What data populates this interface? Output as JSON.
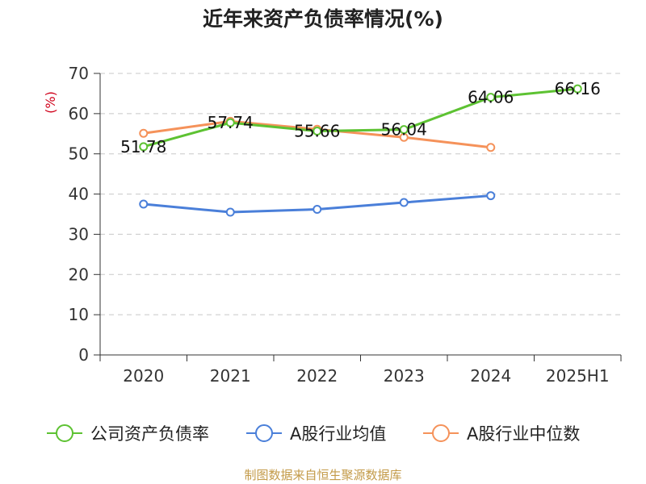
{
  "chart_data": {
    "type": "line",
    "title": "近年来资产负债率情况(%)",
    "ylabel": "(%)",
    "xlabel": "",
    "categories": [
      "2020",
      "2021",
      "2022",
      "2023",
      "2024",
      "2025H1"
    ],
    "ylim": [
      0,
      70
    ],
    "yticks": [
      0,
      10,
      20,
      30,
      40,
      50,
      60,
      70
    ],
    "grid": true,
    "legend_position": "bottom",
    "series": [
      {
        "name": "公司资产负债率",
        "color": "#5dc232",
        "values": [
          51.78,
          57.74,
          55.66,
          56.04,
          64.06,
          66.16
        ],
        "labels": [
          "51.78",
          "57.74",
          "55.66",
          "56.04",
          "64.06",
          "66.16"
        ]
      },
      {
        "name": "A股行业均值",
        "color": "#4a7fd9",
        "values": [
          37.5,
          35.5,
          36.2,
          37.9,
          39.6,
          null
        ]
      },
      {
        "name": "A股行业中位数",
        "color": "#f5925a",
        "values": [
          55.1,
          58.1,
          56.1,
          54.1,
          51.6,
          null
        ]
      }
    ]
  },
  "source_note": "制图数据来自恒生聚源数据库",
  "colors": {
    "ylabel": "#d0021b",
    "axis": "#333333",
    "grid": "#c8c8c8"
  }
}
